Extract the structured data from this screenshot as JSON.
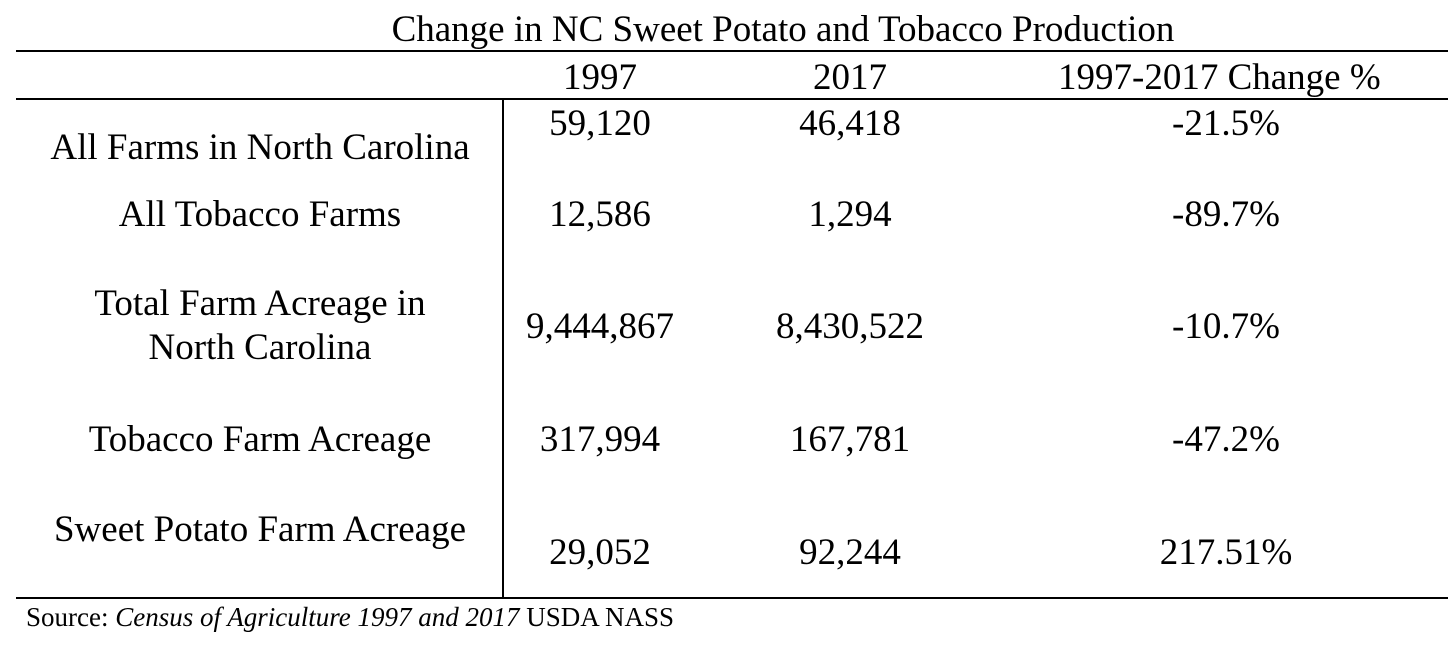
{
  "table": {
    "title": "Change in NC Sweet Potato and Tobacco Production",
    "headers": [
      "",
      "1997",
      "2017",
      "1997-2017 Change %"
    ],
    "rows": [
      {
        "label": "All Farms in North Carolina",
        "v1997": "59,120",
        "v2017": "46,418",
        "change": "-21.5%"
      },
      {
        "label": "All Tobacco Farms",
        "v1997": "12,586",
        "v2017": "1,294",
        "change": "-89.7%"
      },
      {
        "label": "Total Farm Acreage in North Carolina",
        "v1997": "9,444,867",
        "v2017": "8,430,522",
        "change": "-10.7%"
      },
      {
        "label": "Tobacco Farm Acreage",
        "v1997": "317,994",
        "v2017": "167,781",
        "change": "-47.2%"
      },
      {
        "label": "Sweet Potato Farm Acreage",
        "v1997": "29,052",
        "v2017": "92,244",
        "change": "217.51%"
      }
    ]
  },
  "source": {
    "prefix": "Source: ",
    "title_italic": "Census of Agriculture 1997 and 2017",
    "suffix": " USDA NASS"
  }
}
